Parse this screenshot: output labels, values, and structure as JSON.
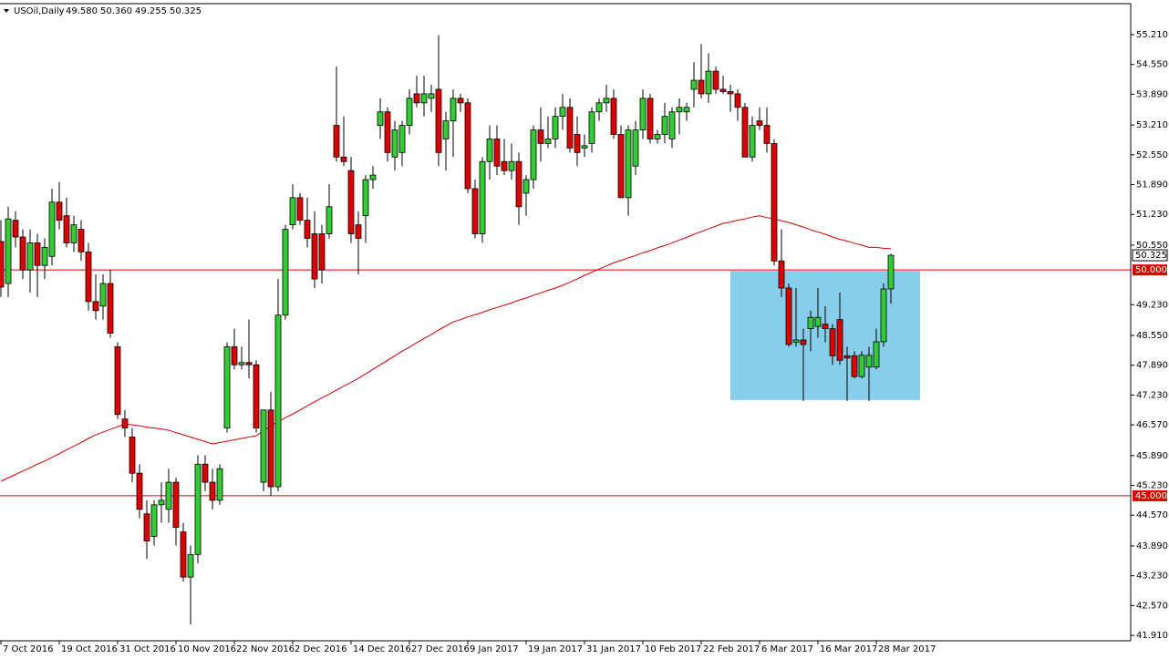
{
  "chart_data": {
    "type": "candlestick",
    "title": "USOil,Daily",
    "quote": [
      "49.580",
      "50.360",
      "49.255",
      "50.325"
    ],
    "up_color": "#32cd32",
    "down_color": "#e00000",
    "ylim": [
      41.79,
      55.876
    ],
    "yticks": [
      {
        "value": 55.21,
        "label": "55.210"
      },
      {
        "value": 54.55,
        "label": "54.550"
      },
      {
        "value": 53.89,
        "label": "53.890"
      },
      {
        "value": 53.21,
        "label": "53.210"
      },
      {
        "value": 52.55,
        "label": "52.550"
      },
      {
        "value": 51.89,
        "label": "51.890"
      },
      {
        "value": 51.23,
        "label": "51.230"
      },
      {
        "value": 50.55,
        "label": "50.550"
      },
      {
        "value": 49.23,
        "label": "49.230"
      },
      {
        "value": 48.55,
        "label": "48.550"
      },
      {
        "value": 47.89,
        "label": "47.890"
      },
      {
        "value": 47.23,
        "label": "47.230"
      },
      {
        "value": 46.57,
        "label": "46.570"
      },
      {
        "value": 45.89,
        "label": "45.890"
      },
      {
        "value": 45.23,
        "label": "45.230"
      },
      {
        "value": 44.57,
        "label": "44.570"
      },
      {
        "value": 43.89,
        "label": "43.890"
      },
      {
        "value": 43.23,
        "label": "43.230"
      },
      {
        "value": 42.57,
        "label": "42.570"
      },
      {
        "value": 41.91,
        "label": "41.910"
      }
    ],
    "price_tag": {
      "value": 50.325,
      "label": "50.325"
    },
    "hlines": [
      {
        "value": 50.0,
        "label": "50.000",
        "color": "#e00000"
      },
      {
        "value": 45.0,
        "label": "45.000",
        "color": "#e00000"
      }
    ],
    "zone": {
      "start": 100,
      "end": 126,
      "high": 49.98,
      "low": 47.12,
      "color": "#87ceeb"
    },
    "categories": [
      "7 Oct 2016",
      null,
      null,
      null,
      null,
      null,
      null,
      null,
      "19 Oct 2016",
      null,
      null,
      null,
      null,
      null,
      null,
      null,
      "31 Oct 2016",
      null,
      null,
      null,
      null,
      null,
      null,
      null,
      "10 Nov 2016",
      null,
      null,
      null,
      null,
      null,
      null,
      null,
      "22 Nov 2016",
      null,
      null,
      null,
      null,
      null,
      null,
      null,
      "2 Dec 2016",
      null,
      null,
      null,
      null,
      null,
      null,
      null,
      "14 Dec 2016",
      null,
      null,
      null,
      null,
      null,
      null,
      null,
      "27 Dec 2016",
      null,
      null,
      null,
      null,
      null,
      null,
      null,
      "9 Jan 2017",
      null,
      null,
      null,
      null,
      null,
      null,
      null,
      "19 Jan 2017",
      null,
      null,
      null,
      null,
      null,
      null,
      null,
      "31 Jan 2017",
      null,
      null,
      null,
      null,
      null,
      null,
      null,
      "10 Feb 2017",
      null,
      null,
      null,
      null,
      null,
      null,
      null,
      "22 Feb 2017",
      null,
      null,
      null,
      null,
      null,
      null,
      null,
      "6 Mar 2017",
      null,
      null,
      null,
      null,
      null,
      null,
      null,
      "16 Mar 2017",
      null,
      null,
      null,
      null,
      null,
      null,
      null,
      "28 Mar 2017",
      null,
      null
    ],
    "open": [
      50.63,
      49.7,
      51.1,
      50.73,
      50.0,
      50.6,
      50.1,
      50.3,
      51.5,
      51.2,
      50.6,
      50.9,
      50.4,
      49.3,
      49.2,
      49.7,
      48.3,
      46.7,
      46.3,
      45.5,
      44.6,
      44.1,
      44.8,
      44.7,
      45.3,
      44.2,
      43.2,
      43.7,
      45.7,
      45.3,
      44.9,
      46.5,
      48.3,
      47.9,
      47.95,
      47.9,
      45.3,
      46.9,
      45.2,
      49.0,
      51.0,
      51.6,
      51.1,
      50.8,
      50.8,
      50.8,
      53.2,
      52.5,
      52.2,
      51.0,
      51.2,
      52.0,
      53.2,
      53.5,
      52.5,
      52.6,
      53.2,
      53.9,
      53.7,
      53.8,
      54.0,
      52.9,
      53.3,
      53.8,
      53.7,
      51.8,
      50.8,
      52.4,
      52.9,
      52.4,
      52.2,
      52.4,
      51.7,
      52.0,
      53.1,
      52.8,
      52.9,
      53.4,
      53.6,
      53.0,
      52.7,
      52.8,
      53.5,
      53.7,
      53.8,
      53.0,
      51.6,
      52.3,
      53.1,
      53.8,
      52.9,
      53.0,
      52.9,
      53.5,
      53.5,
      54.0,
      54.2,
      53.9,
      54.4,
      54.0,
      53.95,
      53.9,
      53.6,
      52.5,
      53.3,
      53.2,
      52.8,
      50.2,
      49.6,
      48.4,
      48.45,
      48.7,
      48.75,
      48.8,
      48.7,
      48.9,
      48.1,
      48.1,
      47.64,
      47.85,
      47.85,
      48.41,
      49.58
    ],
    "high": [
      51.1,
      51.4,
      51.3,
      50.9,
      50.9,
      50.8,
      50.7,
      51.8,
      51.95,
      51.6,
      51.2,
      51.1,
      50.6,
      49.9,
      49.9,
      50.0,
      48.4,
      46.9,
      46.5,
      45.7,
      44.9,
      44.9,
      45.3,
      45.6,
      45.4,
      44.4,
      43.9,
      45.9,
      45.9,
      45.6,
      45.7,
      48.4,
      48.7,
      48.3,
      48.9,
      48.0,
      46.9,
      47.3,
      49.8,
      51.0,
      51.9,
      51.7,
      51.6,
      51.3,
      51.0,
      51.9,
      54.5,
      53.4,
      52.5,
      51.3,
      52.1,
      52.3,
      53.8,
      53.6,
      53.3,
      53.3,
      54.0,
      54.3,
      54.3,
      54.1,
      55.2,
      53.5,
      54.0,
      53.9,
      53.8,
      52.0,
      52.5,
      53.2,
      53.2,
      52.9,
      52.8,
      52.6,
      52.1,
      53.2,
      53.6,
      53.4,
      53.6,
      53.9,
      53.8,
      53.4,
      53.0,
      53.6,
      53.8,
      54.1,
      54.0,
      53.2,
      53.2,
      53.3,
      54.0,
      53.9,
      53.1,
      53.7,
      53.6,
      53.8,
      53.7,
      54.6,
      55.0,
      54.8,
      54.5,
      54.3,
      54.1,
      54.0,
      53.7,
      53.4,
      53.6,
      53.6,
      52.9,
      50.9,
      49.7,
      49.6,
      48.7,
      49.1,
      49.6,
      49.2,
      48.8,
      49.5,
      48.3,
      48.2,
      48.2,
      48.3,
      48.7,
      49.7,
      50.36
    ],
    "low": [
      49.4,
      49.4,
      50.5,
      49.8,
      49.5,
      49.4,
      49.8,
      50.1,
      50.9,
      50.5,
      50.4,
      50.2,
      49.1,
      48.9,
      48.9,
      48.5,
      46.7,
      46.3,
      45.3,
      44.5,
      43.6,
      43.9,
      44.4,
      44.4,
      43.9,
      43.1,
      42.15,
      43.5,
      45.1,
      44.7,
      44.8,
      46.4,
      47.8,
      47.8,
      47.6,
      46.4,
      45.1,
      45.0,
      45.1,
      48.9,
      50.9,
      51.0,
      50.5,
      49.6,
      49.7,
      50.7,
      52.4,
      52.3,
      50.6,
      49.9,
      50.6,
      51.8,
      52.9,
      52.4,
      52.2,
      52.3,
      53.0,
      53.6,
      53.4,
      53.5,
      52.3,
      52.2,
      52.5,
      53.5,
      51.7,
      50.7,
      50.6,
      52.0,
      52.1,
      52.1,
      52.0,
      51.0,
      51.2,
      51.8,
      52.4,
      52.7,
      52.7,
      53.1,
      52.6,
      52.3,
      52.5,
      52.6,
      53.3,
      53.5,
      52.9,
      51.6,
      51.2,
      52.1,
      52.9,
      52.8,
      52.8,
      52.8,
      52.7,
      53.0,
      53.3,
      53.6,
      53.8,
      53.7,
      53.9,
      53.9,
      53.5,
      53.3,
      52.5,
      52.4,
      53.1,
      52.6,
      50.1,
      49.4,
      48.3,
      48.3,
      47.1,
      48.2,
      48.5,
      48.4,
      47.9,
      47.9,
      47.1,
      47.6,
      47.6,
      47.1,
      47.8,
      48.3,
      49.255
    ],
    "close": [
      49.62,
      51.13,
      50.73,
      50.0,
      50.6,
      50.1,
      50.5,
      51.5,
      51.1,
      50.6,
      51.0,
      50.4,
      49.3,
      49.1,
      49.7,
      48.6,
      46.8,
      46.5,
      45.5,
      44.7,
      44.0,
      44.8,
      44.9,
      45.3,
      44.3,
      43.2,
      43.7,
      45.7,
      45.3,
      44.9,
      45.6,
      48.3,
      47.9,
      47.95,
      47.9,
      46.5,
      46.9,
      45.2,
      49.0,
      50.9,
      51.6,
      51.1,
      50.7,
      49.8,
      50.0,
      51.4,
      52.5,
      52.4,
      50.8,
      50.7,
      52.0,
      52.1,
      53.5,
      52.6,
      53.1,
      53.2,
      53.8,
      53.7,
      53.9,
      53.9,
      52.6,
      53.3,
      53.8,
      53.7,
      51.8,
      50.8,
      52.4,
      52.9,
      52.3,
      52.2,
      52.4,
      51.4,
      52.0,
      53.1,
      52.8,
      52.9,
      53.4,
      53.6,
      52.7,
      52.6,
      52.75,
      53.5,
      53.7,
      53.8,
      53.0,
      51.6,
      53.1,
      53.1,
      53.8,
      52.9,
      53.0,
      53.4,
      53.5,
      53.6,
      53.6,
      54.2,
      53.9,
      54.4,
      54.0,
      53.95,
      53.9,
      53.6,
      52.5,
      53.2,
      53.2,
      52.8,
      50.2,
      49.6,
      48.35,
      48.45,
      48.35,
      48.95,
      48.95,
      48.7,
      48.1,
      48.0,
      48.05,
      47.64,
      48.11,
      48.11,
      48.41,
      49.58,
      50.325
    ],
    "ma": {
      "color": "#d00000",
      "values": [
        45.32,
        45.4,
        45.47,
        45.55,
        45.62,
        45.7,
        45.77,
        45.85,
        45.93,
        46.02,
        46.1,
        46.18,
        46.27,
        46.35,
        46.41,
        46.47,
        46.53,
        46.59,
        46.57,
        46.55,
        46.52,
        46.5,
        46.48,
        46.45,
        46.4,
        46.35,
        46.3,
        46.25,
        46.2,
        46.15,
        46.18,
        46.21,
        46.24,
        46.27,
        46.3,
        46.33,
        46.44,
        46.55,
        46.64,
        46.73,
        46.81,
        46.9,
        46.99,
        47.08,
        47.17,
        47.25,
        47.34,
        47.43,
        47.51,
        47.6,
        47.7,
        47.8,
        47.9,
        48.0,
        48.1,
        48.2,
        48.29,
        48.39,
        48.48,
        48.57,
        48.67,
        48.76,
        48.85,
        48.9,
        48.96,
        49.01,
        49.06,
        49.12,
        49.17,
        49.22,
        49.27,
        49.33,
        49.38,
        49.44,
        49.49,
        49.55,
        49.6,
        49.66,
        49.73,
        49.8,
        49.88,
        49.95,
        50.02,
        50.09,
        50.16,
        50.21,
        50.27,
        50.32,
        50.38,
        50.43,
        50.49,
        50.54,
        50.6,
        50.66,
        50.72,
        50.79,
        50.85,
        50.91,
        50.97,
        51.03,
        51.06,
        51.1,
        51.13,
        51.17,
        51.2,
        51.16,
        51.13,
        51.09,
        51.05,
        51.0,
        50.95,
        50.89,
        50.84,
        50.79,
        50.73,
        50.68,
        50.64,
        50.59,
        50.55,
        50.5,
        50.5,
        50.48,
        50.47
      ]
    }
  }
}
